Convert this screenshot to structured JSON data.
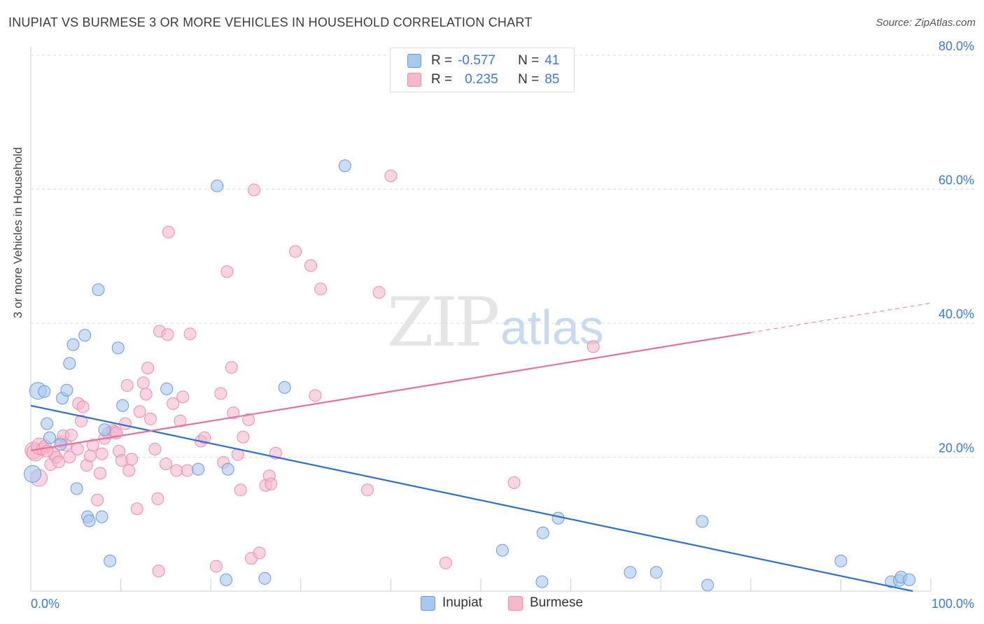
{
  "title": "INUPIAT VS BURMESE 3 OR MORE VEHICLES IN HOUSEHOLD CORRELATION CHART",
  "source": "Source: ZipAtlas.com",
  "watermark": {
    "zip": "ZIP",
    "atlas": "atlas"
  },
  "legend_top": {
    "rows": [
      {
        "r_label": "R =",
        "r_value": "-0.577",
        "n_label": "N =",
        "n_value": "41",
        "color": "#a9c8f0"
      },
      {
        "r_label": "R =",
        "r_value": "0.235",
        "n_label": "N =",
        "n_value": "85",
        "color": "#f7b8cb"
      }
    ]
  },
  "bottom_legend": [
    {
      "label": "Inupiat",
      "color": "#a9c8f0"
    },
    {
      "label": "Burmese",
      "color": "#f7b8cb"
    }
  ],
  "chart_data": {
    "type": "scatter",
    "title": "INUPIAT VS BURMESE 3 OR MORE VEHICLES IN HOUSEHOLD CORRELATION CHART",
    "xlabel": "",
    "ylabel": "3 or more Vehicles in Household",
    "xlim": [
      0,
      100
    ],
    "ylim": [
      0,
      80
    ],
    "x_tick_labels": [
      {
        "value": 0,
        "label": "0.0%"
      },
      {
        "value": 100,
        "label": "100.0%"
      }
    ],
    "y_tick_labels": [
      {
        "value": 20,
        "label": "20.0%"
      },
      {
        "value": 40,
        "label": "40.0%"
      },
      {
        "value": 60,
        "label": "60.0%"
      },
      {
        "value": 80,
        "label": "80.0%"
      }
    ],
    "grid": true,
    "legend_position": "top-center",
    "series": [
      {
        "name": "Inupiat",
        "color": "#a9c8f0",
        "stroke": "#6a9be0",
        "trend_color": "#2f6fd0",
        "trend": {
          "x0": 0,
          "y0": 27.7,
          "x1": 98,
          "y1": 0
        },
        "points": [
          [
            0.2,
            17.5
          ],
          [
            0.8,
            29.9
          ],
          [
            1.5,
            29.8
          ],
          [
            1.8,
            25.0
          ],
          [
            2.1,
            22.9
          ],
          [
            3.3,
            21.9
          ],
          [
            3.5,
            28.8
          ],
          [
            4.0,
            30.0
          ],
          [
            4.3,
            34.0
          ],
          [
            4.7,
            36.8
          ],
          [
            5.1,
            15.3
          ],
          [
            6.0,
            38.2
          ],
          [
            6.3,
            11.1
          ],
          [
            6.5,
            10.5
          ],
          [
            7.5,
            45.0
          ],
          [
            7.9,
            11.1
          ],
          [
            8.2,
            24.1
          ],
          [
            8.8,
            4.5
          ],
          [
            9.7,
            36.3
          ],
          [
            10.2,
            27.7
          ],
          [
            15.1,
            30.2
          ],
          [
            18.6,
            18.2
          ],
          [
            20.7,
            60.5
          ],
          [
            21.7,
            1.7
          ],
          [
            21.9,
            18.2
          ],
          [
            26.0,
            1.9
          ],
          [
            28.2,
            30.4
          ],
          [
            34.9,
            63.5
          ],
          [
            52.4,
            6.1
          ],
          [
            56.8,
            1.4
          ],
          [
            56.9,
            8.7
          ],
          [
            58.6,
            10.9
          ],
          [
            66.6,
            2.8
          ],
          [
            69.5,
            2.8
          ],
          [
            74.6,
            10.4
          ],
          [
            75.2,
            0.9
          ],
          [
            90.0,
            4.5
          ],
          [
            95.6,
            1.4
          ],
          [
            96.5,
            1.6
          ],
          [
            96.7,
            2.1
          ],
          [
            97.6,
            1.7
          ]
        ]
      },
      {
        "name": "Burmese",
        "color": "#f7b8cb",
        "stroke": "#ea8fac",
        "trend_color": "#e4739a",
        "trend": {
          "x0": 0,
          "y0": 21.0,
          "x1": 80,
          "y1": 38.6
        },
        "trend_ext": {
          "x0": 80,
          "y0": 38.6,
          "x1": 100,
          "y1": 43.0
        },
        "points": [
          [
            0.3,
            21.0
          ],
          [
            0.5,
            20.7
          ],
          [
            0.9,
            16.9
          ],
          [
            1.0,
            21.6
          ],
          [
            1.3,
            21.2
          ],
          [
            1.6,
            21.7
          ],
          [
            2.2,
            18.9
          ],
          [
            2.6,
            20.5
          ],
          [
            2.8,
            20.0
          ],
          [
            3.1,
            19.3
          ],
          [
            3.4,
            22.3
          ],
          [
            3.6,
            23.2
          ],
          [
            3.9,
            21.8
          ],
          [
            4.3,
            20.0
          ],
          [
            4.5,
            23.3
          ],
          [
            5.2,
            21.2
          ],
          [
            5.3,
            28.0
          ],
          [
            5.6,
            25.4
          ],
          [
            5.8,
            27.5
          ],
          [
            6.2,
            18.8
          ],
          [
            6.6,
            20.2
          ],
          [
            6.9,
            21.8
          ],
          [
            7.4,
            13.6
          ],
          [
            7.7,
            17.6
          ],
          [
            7.9,
            20.5
          ],
          [
            8.2,
            22.8
          ],
          [
            8.6,
            23.6
          ],
          [
            9.1,
            24.0
          ],
          [
            9.3,
            23.8
          ],
          [
            9.8,
            20.9
          ],
          [
            10.1,
            19.5
          ],
          [
            10.5,
            25.0
          ],
          [
            10.7,
            30.7
          ],
          [
            10.9,
            18.0
          ],
          [
            11.2,
            19.7
          ],
          [
            11.8,
            12.3
          ],
          [
            12.1,
            26.8
          ],
          [
            12.5,
            31.1
          ],
          [
            12.8,
            29.4
          ],
          [
            13.0,
            33.3
          ],
          [
            13.3,
            25.7
          ],
          [
            13.8,
            21.2
          ],
          [
            14.1,
            13.8
          ],
          [
            14.3,
            38.8
          ],
          [
            15.0,
            19.0
          ],
          [
            15.2,
            38.3
          ],
          [
            15.3,
            53.6
          ],
          [
            15.8,
            28.0
          ],
          [
            16.2,
            18.0
          ],
          [
            16.6,
            25.4
          ],
          [
            16.9,
            29.0
          ],
          [
            17.4,
            18.0
          ],
          [
            17.7,
            38.4
          ],
          [
            18.9,
            22.4
          ],
          [
            19.3,
            22.9
          ],
          [
            20.6,
            3.7
          ],
          [
            21.1,
            29.5
          ],
          [
            21.4,
            19.2
          ],
          [
            21.8,
            47.7
          ],
          [
            22.3,
            33.4
          ],
          [
            22.5,
            26.6
          ],
          [
            23.0,
            20.4
          ],
          [
            23.3,
            15.1
          ],
          [
            23.6,
            23.0
          ],
          [
            24.2,
            25.6
          ],
          [
            24.5,
            4.9
          ],
          [
            24.8,
            59.9
          ],
          [
            25.4,
            5.7
          ],
          [
            26.1,
            15.8
          ],
          [
            26.5,
            17.2
          ],
          [
            26.7,
            16.0
          ],
          [
            27.2,
            20.6
          ],
          [
            29.4,
            50.7
          ],
          [
            31.1,
            48.6
          ],
          [
            31.6,
            29.2
          ],
          [
            32.2,
            45.1
          ],
          [
            37.4,
            15.1
          ],
          [
            38.7,
            44.6
          ],
          [
            40.0,
            62.0
          ],
          [
            46.1,
            4.2
          ],
          [
            53.7,
            16.2
          ],
          [
            62.5,
            36.5
          ],
          [
            14.2,
            3.0
          ],
          [
            9.5,
            23.6
          ],
          [
            1.8,
            20.9
          ]
        ]
      }
    ]
  }
}
